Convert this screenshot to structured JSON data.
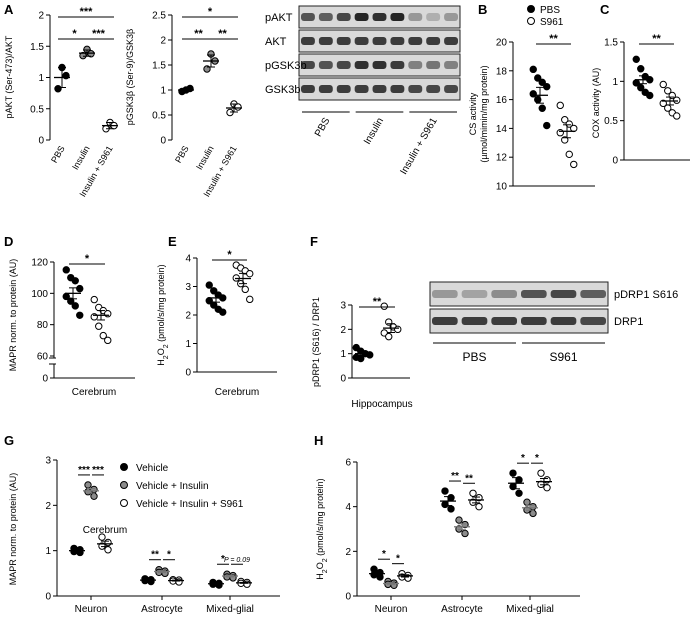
{
  "panels": [
    "A",
    "B",
    "C",
    "D",
    "E",
    "F",
    "G",
    "H"
  ],
  "chart_data": [
    {
      "id": "A1",
      "panel": "A",
      "type": "scatter",
      "categories": [
        "PBS",
        "Insulin",
        "Insulin + S961"
      ],
      "ylabel": "pAKT (Ser-473)/AKT",
      "ylim": [
        0,
        2.0
      ],
      "yticks": [
        0.0,
        0.5,
        1.0,
        1.5,
        2.0
      ],
      "points": [
        [
          0.82,
          1.16,
          1.03
        ],
        [
          1.35,
          1.45,
          1.38
        ],
        [
          0.18,
          0.28,
          0.23
        ]
      ],
      "fills": [
        "black",
        "gray",
        "white"
      ],
      "means": [
        1.0,
        1.39,
        0.23
      ],
      "sems": [
        0.16,
        0.05,
        0.05
      ],
      "significance": [
        {
          "a": 0,
          "b": 1,
          "label": "*"
        },
        {
          "a": 1,
          "b": 2,
          "label": "***"
        },
        {
          "a": 0,
          "b": 2,
          "label": "***"
        }
      ]
    },
    {
      "id": "A2",
      "panel": "A",
      "type": "scatter",
      "categories": [
        "PBS",
        "Insulin",
        "Insulin + S961"
      ],
      "ylabel": "pGSK3β (Ser-9)/GSK3β",
      "ylim": [
        0,
        2.5
      ],
      "yticks": [
        0.0,
        0.5,
        1.0,
        1.5,
        2.0,
        2.5
      ],
      "points": [
        [
          0.97,
          1.0,
          1.03
        ],
        [
          1.42,
          1.72,
          1.58
        ],
        [
          0.55,
          0.72,
          0.66
        ]
      ],
      "fills": [
        "black",
        "gray",
        "white"
      ],
      "means": [
        1.0,
        1.58,
        0.64
      ],
      "sems": [
        0.03,
        0.12,
        0.08
      ],
      "significance": [
        {
          "a": 0,
          "b": 1,
          "label": "**"
        },
        {
          "a": 1,
          "b": 2,
          "label": "**"
        },
        {
          "a": 0,
          "b": 2,
          "label": "*"
        }
      ]
    },
    {
      "id": "B",
      "panel": "B",
      "type": "scatter",
      "legend": [
        "PBS",
        "S961"
      ],
      "ylabel": "CS activity (µmol/mimin/mg protein)",
      "ylim": [
        10,
        20
      ],
      "yticks": [
        10,
        12,
        14,
        16,
        18,
        20
      ],
      "points": [
        [
          18.1,
          17.5,
          17.2,
          16.9,
          16.4,
          16.0,
          15.4,
          14.2
        ],
        [
          15.6,
          14.6,
          14.3,
          14.0,
          13.7,
          13.2,
          12.2,
          11.5
        ]
      ],
      "fills": [
        "black",
        "white"
      ],
      "means": [
        16.3,
        13.8
      ],
      "sems": [
        0.55,
        0.45
      ],
      "significance": [
        {
          "a": 0,
          "b": 1,
          "label": "**"
        }
      ]
    },
    {
      "id": "C",
      "panel": "C",
      "type": "scatter",
      "ylabel": "COX activity (AU)",
      "ylim": [
        0.0,
        1.5
      ],
      "yticks": [
        0.0,
        0.5,
        1.0,
        1.5
      ],
      "points": [
        [
          1.28,
          1.16,
          1.06,
          1.02,
          0.98,
          0.92,
          0.86,
          0.82
        ],
        [
          0.96,
          0.88,
          0.82,
          0.76,
          0.72,
          0.66,
          0.6,
          0.56
        ]
      ],
      "fills": [
        "black",
        "white"
      ],
      "means": [
        1.02,
        0.75
      ],
      "sems": [
        0.05,
        0.05
      ],
      "significance": [
        {
          "a": 0,
          "b": 1,
          "label": "**"
        }
      ]
    },
    {
      "id": "D",
      "panel": "D",
      "type": "scatter",
      "xlabel": "Cerebrum",
      "ylabel": "MAPR norm. to protein (AU)",
      "ylim": [
        0,
        120
      ],
      "yticks": [
        0,
        60,
        80,
        100,
        120
      ],
      "points": [
        [
          115,
          110,
          108,
          103,
          98,
          95,
          92,
          86
        ],
        [
          96,
          91,
          89,
          87,
          85,
          79,
          73,
          70
        ]
      ],
      "fills": [
        "black",
        "white"
      ],
      "means": [
        100,
        86
      ],
      "sems": [
        3.5,
        3.0
      ],
      "significance": [
        {
          "a": 0,
          "b": 1,
          "label": "*"
        }
      ]
    },
    {
      "id": "E",
      "panel": "E",
      "type": "scatter",
      "xlabel": "Cerebrum",
      "ylabel": "H2O2 (pmol/s/mg protein)",
      "ylim": [
        0,
        4
      ],
      "yticks": [
        0,
        1,
        2,
        3,
        4
      ],
      "points": [
        [
          3.05,
          2.85,
          2.7,
          2.6,
          2.5,
          2.35,
          2.2,
          2.1
        ],
        [
          3.75,
          3.65,
          3.55,
          3.45,
          3.3,
          3.1,
          2.9,
          2.55
        ]
      ],
      "fills": [
        "black",
        "white"
      ],
      "means": [
        2.6,
        3.28
      ],
      "sems": [
        0.15,
        0.18
      ],
      "significance": [
        {
          "a": 0,
          "b": 1,
          "label": "*"
        }
      ]
    },
    {
      "id": "F",
      "panel": "F",
      "type": "scatter",
      "xlabel": "Hippocampus",
      "ylabel": "pDRP1 (S616) / DRP1",
      "ylim": [
        0,
        3
      ],
      "yticks": [
        0,
        1,
        2,
        3
      ],
      "points": [
        [
          1.25,
          1.1,
          1.0,
          0.95,
          0.85,
          0.8
        ],
        [
          2.95,
          2.3,
          2.1,
          2.0,
          1.85,
          1.7
        ]
      ],
      "fills": [
        "black",
        "white"
      ],
      "means": [
        1.0,
        2.05
      ],
      "sems": [
        0.07,
        0.18
      ],
      "significance": [
        {
          "a": 0,
          "b": 1,
          "label": "**"
        }
      ]
    },
    {
      "id": "G",
      "panel": "G",
      "type": "scatter",
      "categories": [
        "Neuron",
        "Astrocyte",
        "Mixed-glial"
      ],
      "series": [
        {
          "name": "Vehicle"
        },
        {
          "name": "Vehicle + Insulin"
        },
        {
          "name": "Vehicle + Insulin + S961"
        }
      ],
      "ylabel": "MAPR norm. to protein (AU)",
      "annotation": "Cerebrum",
      "ylim": [
        0,
        3
      ],
      "yticks": [
        0,
        1,
        2,
        3
      ],
      "points": [
        [
          [
            1.05,
            1.02,
            0.98,
            0.96
          ],
          [
            2.45,
            2.35,
            2.3,
            2.2
          ],
          [
            1.3,
            1.18,
            1.1,
            1.02
          ]
        ],
        [
          [
            0.38,
            0.36,
            0.34,
            0.32
          ],
          [
            0.58,
            0.55,
            0.52,
            0.5
          ],
          [
            0.36,
            0.35,
            0.33,
            0.31
          ]
        ],
        [
          [
            0.3,
            0.28,
            0.26,
            0.24
          ],
          [
            0.48,
            0.45,
            0.42,
            0.4
          ],
          [
            0.32,
            0.3,
            0.28,
            0.26
          ]
        ]
      ],
      "means": [
        [
          1.0,
          2.32,
          1.15
        ],
        [
          0.35,
          0.54,
          0.34
        ],
        [
          0.27,
          0.44,
          0.29
        ]
      ],
      "sems": [
        [
          0.02,
          0.05,
          0.06
        ],
        [
          0.02,
          0.02,
          0.01
        ],
        [
          0.01,
          0.02,
          0.01
        ]
      ],
      "significance": [
        {
          "group": 0,
          "a": 0,
          "b": 1,
          "label": "***"
        },
        {
          "group": 0,
          "a": 1,
          "b": 2,
          "label": "***"
        },
        {
          "group": 1,
          "a": 0,
          "b": 1,
          "label": "**"
        },
        {
          "group": 1,
          "a": 1,
          "b": 2,
          "label": "*"
        },
        {
          "group": 2,
          "a": 0,
          "b": 1,
          "label": "*"
        },
        {
          "group": 2,
          "a": 1,
          "b": 2,
          "label": "P = 0.09"
        }
      ]
    },
    {
      "id": "H",
      "panel": "H",
      "type": "scatter",
      "categories": [
        "Neuron",
        "Astrocyte",
        "Mixed-glial"
      ],
      "ylabel": "H2O2 (pmol/s/mg protein)",
      "ylim": [
        0,
        6
      ],
      "yticks": [
        0,
        2,
        4,
        6
      ],
      "points": [
        [
          [
            1.2,
            1.05,
            0.95,
            0.85
          ],
          [
            0.65,
            0.58,
            0.52,
            0.48
          ],
          [
            1.0,
            0.92,
            0.85,
            0.8
          ]
        ],
        [
          [
            4.7,
            4.4,
            4.1,
            3.9
          ],
          [
            3.4,
            3.2,
            3.0,
            2.8
          ],
          [
            4.6,
            4.4,
            4.2,
            4.0
          ]
        ],
        [
          [
            5.5,
            5.2,
            4.9,
            4.6
          ],
          [
            4.2,
            4.0,
            3.85,
            3.7
          ],
          [
            5.5,
            5.2,
            5.0,
            4.85
          ]
        ]
      ],
      "means": [
        [
          1.0,
          0.56,
          0.9
        ],
        [
          4.25,
          3.1,
          4.3
        ],
        [
          5.05,
          3.95,
          5.12
        ]
      ],
      "sems": [
        [
          0.08,
          0.04,
          0.05
        ],
        [
          0.2,
          0.13,
          0.13
        ],
        [
          0.25,
          0.11,
          0.14
        ]
      ],
      "significance": [
        {
          "group": 0,
          "a": 0,
          "b": 1,
          "label": "*"
        },
        {
          "group": 0,
          "a": 1,
          "b": 2,
          "label": "*"
        },
        {
          "group": 1,
          "a": 0,
          "b": 1,
          "label": "**"
        },
        {
          "group": 1,
          "a": 1,
          "b": 2,
          "label": "**"
        },
        {
          "group": 2,
          "a": 0,
          "b": 1,
          "label": "*"
        },
        {
          "group": 2,
          "a": 1,
          "b": 2,
          "label": "*"
        }
      ]
    }
  ],
  "blot_top": {
    "rows": [
      "pAKT",
      "AKT",
      "pGSK3b",
      "GSK3b"
    ],
    "groups": [
      "PBS",
      "Insulin",
      "Insulin + S961"
    ],
    "intensity": [
      [
        0.75,
        0.7,
        0.8,
        0.95,
        0.9,
        0.95,
        0.45,
        0.35,
        0.45
      ],
      [
        0.85,
        0.85,
        0.85,
        0.85,
        0.85,
        0.85,
        0.85,
        0.85,
        0.85
      ],
      [
        0.8,
        0.75,
        0.8,
        0.9,
        0.9,
        0.85,
        0.55,
        0.6,
        0.55
      ],
      [
        0.85,
        0.85,
        0.85,
        0.85,
        0.85,
        0.85,
        0.8,
        0.8,
        0.8
      ]
    ]
  },
  "blot_f": {
    "rows": [
      "pDRP1 S616",
      "DRP1"
    ],
    "groups": [
      "PBS",
      "S961"
    ],
    "intensity": [
      [
        0.45,
        0.4,
        0.5,
        0.75,
        0.8,
        0.7
      ],
      [
        0.85,
        0.85,
        0.85,
        0.85,
        0.85,
        0.8
      ]
    ]
  }
}
